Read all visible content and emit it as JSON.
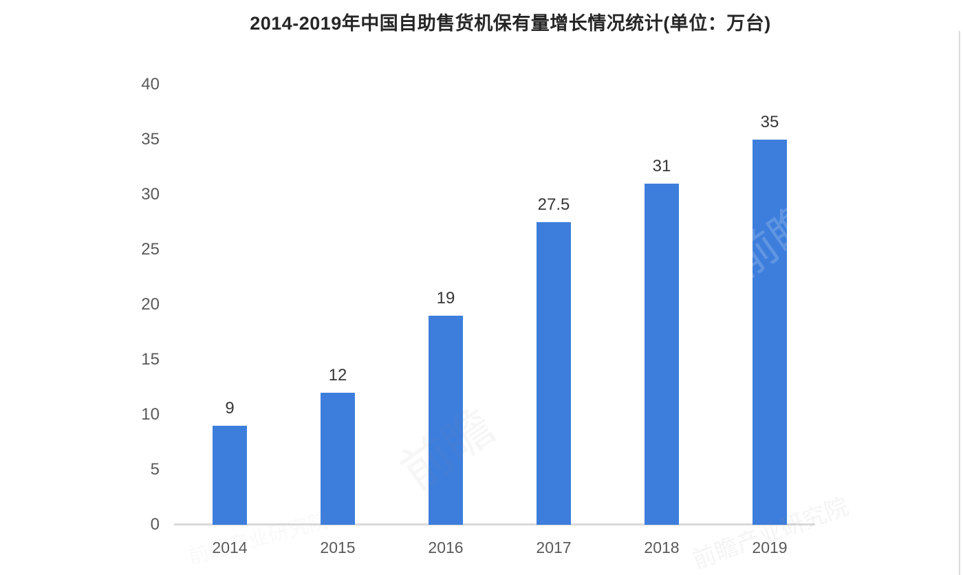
{
  "chart_data": {
    "type": "bar",
    "title": "2014-2019年中国自助售货机保有量增长情况统计(单位：万台)",
    "categories": [
      "2014",
      "2015",
      "2016",
      "2017",
      "2018",
      "2019"
    ],
    "values": [
      9,
      12,
      19,
      27.5,
      31,
      35
    ],
    "value_labels": [
      "9",
      "12",
      "19",
      "27.5",
      "31",
      "35"
    ],
    "xlabel": "",
    "ylabel": "",
    "unit": "万台",
    "ylim": [
      0,
      40
    ],
    "yticks": [
      0,
      5,
      10,
      15,
      20,
      25,
      30,
      35,
      40
    ],
    "grid": false,
    "legend_position": "none",
    "bar_color": "#3d7edc",
    "background_color": "#ffffff",
    "title_color": "#262626",
    "tick_label_color": "#595959",
    "value_label_color": "#363636",
    "axis_line_color": "#d9d9d9"
  },
  "watermark": {
    "primary_text": "前瞻",
    "footer_text": "前瞻产业研究院"
  }
}
